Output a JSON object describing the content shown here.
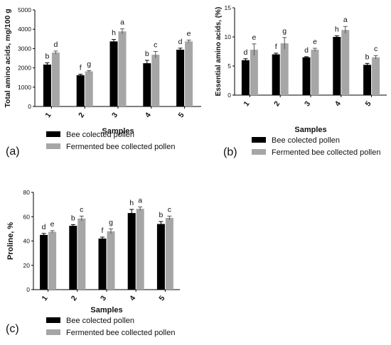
{
  "colors": {
    "series1": "#000000",
    "series2": "#a6a6a6"
  },
  "chart_data": [
    {
      "panel": "(a)",
      "type": "bar",
      "xlabel": "Samples",
      "ylabel": "Total amino acids, mg/100 g",
      "ylim": [
        0,
        5000
      ],
      "yticks": [
        "0",
        "1000",
        "2000",
        "3000",
        "4000",
        "5000"
      ],
      "categories": [
        "1",
        "2",
        "3",
        "4",
        "5"
      ],
      "series": [
        {
          "name": "Bee colected pollen",
          "values": [
            2170,
            1620,
            3370,
            2240,
            2940
          ],
          "errors": [
            90,
            50,
            100,
            150,
            80
          ],
          "letters": [
            "b",
            "f",
            "h",
            "b",
            "d"
          ]
        },
        {
          "name": "Fermented bee collected pollen",
          "values": [
            2790,
            1820,
            3890,
            2680,
            3370
          ],
          "errors": [
            80,
            40,
            130,
            170,
            70
          ],
          "letters": [
            "d",
            "g",
            "a",
            "c",
            "e"
          ]
        }
      ],
      "legend": "bottom"
    },
    {
      "panel": "(b)",
      "type": "bar",
      "xlabel": "Samples",
      "ylabel": "Essential amino acids, (%)",
      "ylim": [
        0,
        15
      ],
      "yticks": [
        "0",
        "5",
        "10",
        "15"
      ],
      "categories": [
        "1",
        "2",
        "3",
        "4",
        "5"
      ],
      "series": [
        {
          "name": "Bee colected pollen",
          "values": [
            6.0,
            7.0,
            6.5,
            10.0,
            5.2
          ],
          "errors": [
            0.25,
            0.2,
            0.1,
            0.2,
            0.25
          ],
          "letters": [
            "d",
            "f",
            "d",
            "h",
            "b"
          ]
        },
        {
          "name": "Fermented bee collected pollen",
          "values": [
            7.8,
            8.9,
            7.8,
            11.2,
            6.5
          ],
          "errors": [
            1.0,
            1.0,
            0.25,
            0.6,
            0.3
          ],
          "letters": [
            "e",
            "g",
            "e",
            "a",
            "c"
          ]
        }
      ],
      "legend": "bottom"
    },
    {
      "panel": "(c)",
      "type": "bar",
      "xlabel": "Samples",
      "ylabel": "Proline, %",
      "ylim": [
        0,
        80
      ],
      "yticks": [
        "0",
        "20",
        "40",
        "60",
        "80"
      ],
      "categories": [
        "1",
        "2",
        "3",
        "4",
        "5"
      ],
      "series": [
        {
          "name": "Bee colected pollen",
          "values": [
            45,
            52.5,
            42,
            63,
            54
          ],
          "errors": [
            1.2,
            1.0,
            1.2,
            3.0,
            2.0
          ],
          "letters": [
            "d",
            "b",
            "f",
            "h",
            "b"
          ]
        },
        {
          "name": "Fermented bee collected pollen",
          "values": [
            47.5,
            58.5,
            48,
            66.5,
            59
          ],
          "errors": [
            1.0,
            2.0,
            2.0,
            1.5,
            1.5
          ],
          "letters": [
            "e",
            "c",
            "g",
            "a",
            "c"
          ]
        }
      ],
      "legend": "bottom"
    }
  ]
}
